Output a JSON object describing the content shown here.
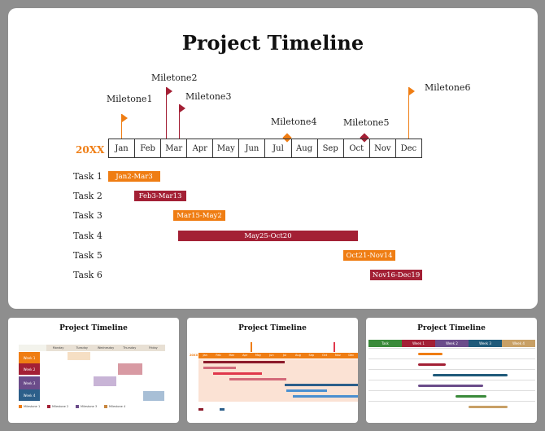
{
  "main_slide": {
    "title": "Project Timeline",
    "year": "20XX",
    "months": [
      "Jan",
      "Feb",
      "Mar",
      "Apr",
      "May",
      "Jun",
      "Jul",
      "Aug",
      "Sep",
      "Oct",
      "Nov",
      "Dec"
    ],
    "milestones": [
      {
        "label": "Miletone1",
        "color": "#ef7d13",
        "marker": "flag"
      },
      {
        "label": "Miletone2",
        "color": "#a32035",
        "marker": "flag"
      },
      {
        "label": "Miletone3",
        "color": "#a32035",
        "marker": "flag"
      },
      {
        "label": "Miletone4",
        "color": "#ef7d13",
        "marker": "diamond"
      },
      {
        "label": "Miletone5",
        "color": "#a32035",
        "marker": "diamond"
      },
      {
        "label": "Miletone6",
        "color": "#ef7d13",
        "marker": "flag"
      }
    ],
    "tasks": [
      {
        "label": "Task 1",
        "range": "Jan2-Mar3",
        "color": "#ef7d13"
      },
      {
        "label": "Task 2",
        "range": "Feb3-Mar13",
        "color": "#a32035"
      },
      {
        "label": "Task 3",
        "range": "Mar15-May2",
        "color": "#ef7d13"
      },
      {
        "label": "Task 4",
        "range": "May25-Oct20",
        "color": "#a32035"
      },
      {
        "label": "Task 5",
        "range": "Oct21-Nov14",
        "color": "#ef7d13"
      },
      {
        "label": "Task 6",
        "range": "Nov16-Dec19",
        "color": "#a32035"
      }
    ]
  },
  "thumbnails": [
    {
      "title": "Project Timeline",
      "days": [
        "Monday",
        "Tuesday",
        "Wednesday",
        "Thursday",
        "Friday"
      ],
      "weeks": [
        "Week 1",
        "Week 2",
        "Week 3",
        "Week 4"
      ],
      "legend": [
        "Milestone 1",
        "Milestone 2",
        "Milestone 3",
        "Milestone 4"
      ]
    },
    {
      "title": "Project Timeline",
      "year": "20XX",
      "months": [
        "Jan",
        "Feb",
        "Mar",
        "Apr",
        "May",
        "Jun",
        "Jul",
        "Aug",
        "Sep",
        "Oct",
        "Nov",
        "Dec"
      ]
    },
    {
      "title": "Project Timeline",
      "headers": [
        "Task",
        "Week 1",
        "Week 2",
        "Week 3",
        "Week 4"
      ]
    }
  ]
}
